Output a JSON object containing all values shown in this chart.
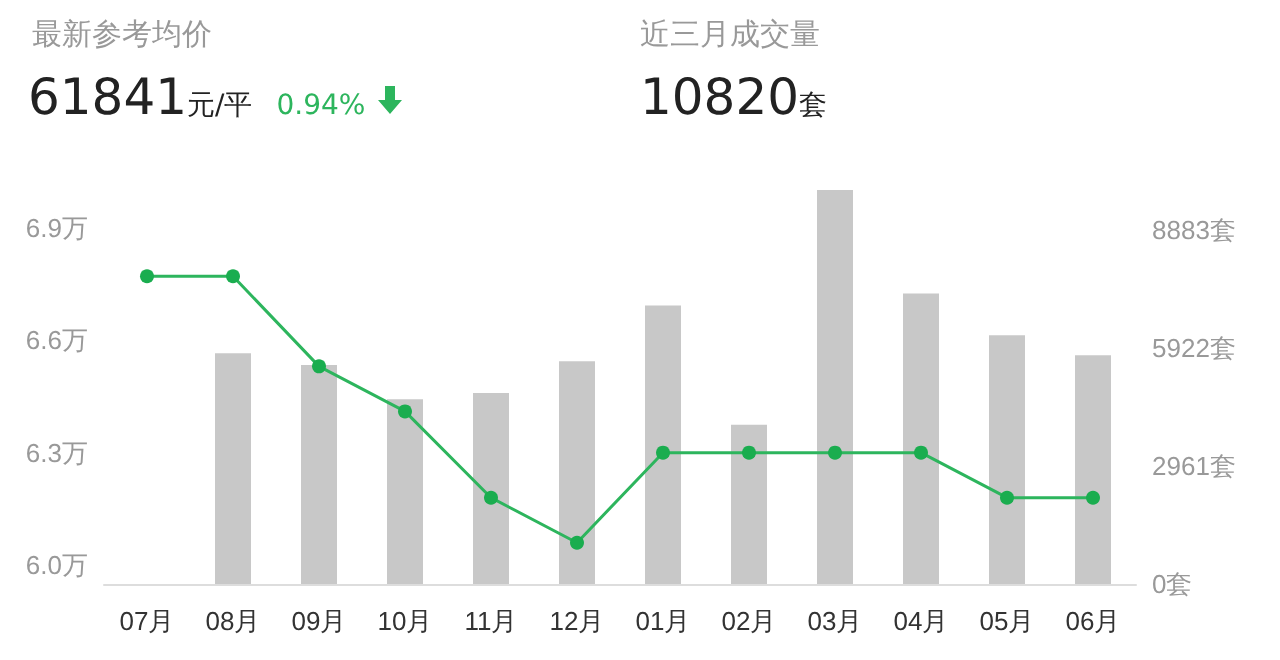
{
  "chart_data": {
    "type": "bar",
    "annotations": [
      "最新参考均价",
      "61841元/平",
      "0.94%",
      "近三月成交量",
      "10820套"
    ],
    "categories": [
      "07月",
      "08月",
      "09月",
      "10月",
      "11月",
      "12月",
      "01月",
      "02月",
      "03月",
      "04月",
      "05月",
      "06月"
    ],
    "series": [
      {
        "axis": "y2",
        "color": "#c8c8c8",
        "values": [
          null,
          5800,
          5500,
          4640,
          4800,
          5600,
          7000,
          4000,
          9900,
          7300,
          6250,
          5750
        ]
      },
      {
        "type": "line",
        "color": "#2db55d",
        "values": [
          6.77,
          6.77,
          6.53,
          6.41,
          6.18,
          6.06,
          6.3,
          6.3,
          6.3,
          6.3,
          6.18,
          6.18
        ]
      }
    ],
    "ylim": [
      5.95,
      7.0
    ],
    "yticks": [
      {
        "value": 6.0,
        "label": "6.0万"
      },
      {
        "value": 6.3,
        "label": "6.3万"
      },
      {
        "value": 6.6,
        "label": "6.6万"
      },
      {
        "value": 6.9,
        "label": "6.9万"
      }
    ],
    "y2lim": [
      0,
      9900
    ],
    "y2ticks": [
      {
        "value": 0,
        "label": "0套"
      },
      {
        "value": 2961,
        "label": "2961套"
      },
      {
        "value": 5922,
        "label": "5922套"
      },
      {
        "value": 8883,
        "label": "8883套"
      }
    ],
    "marker": "circle"
  }
}
